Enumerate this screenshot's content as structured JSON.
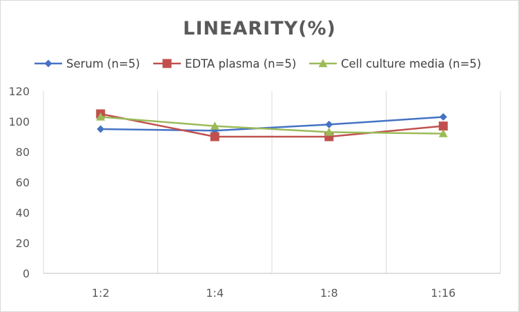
{
  "chart_data": {
    "type": "line",
    "title": "LINEARITY(%)",
    "xlabel": "",
    "ylabel": "",
    "categories": [
      "1:2",
      "1:4",
      "1:8",
      "1:16"
    ],
    "ylim": [
      0,
      120
    ],
    "yticks": [
      0,
      20,
      40,
      60,
      80,
      100,
      120
    ],
    "grid": "vertical",
    "legend_position": "top",
    "series": [
      {
        "name": "Serum (n=5)",
        "values": [
          95,
          94,
          98,
          103
        ],
        "color": "#4472c4",
        "marker": "diamond"
      },
      {
        "name": "EDTA plasma (n=5)",
        "values": [
          105,
          90,
          90,
          97
        ],
        "color": "#c0504d",
        "marker": "square"
      },
      {
        "name": "Cell culture media (n=5)",
        "values": [
          103,
          97,
          93,
          92
        ],
        "color": "#9bbb59",
        "marker": "triangle"
      }
    ]
  }
}
